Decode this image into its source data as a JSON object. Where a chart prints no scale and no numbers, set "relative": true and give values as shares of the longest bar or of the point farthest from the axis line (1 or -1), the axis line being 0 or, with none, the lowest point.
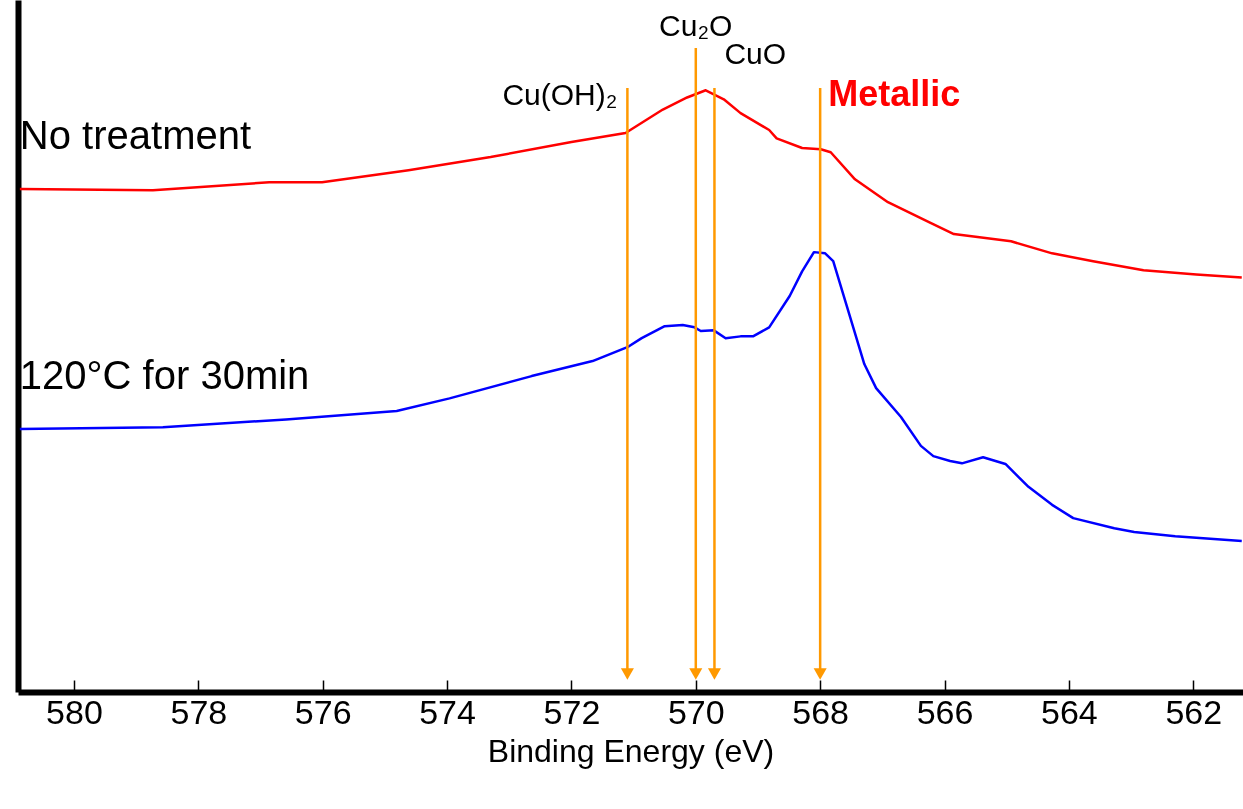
{
  "chart_data": {
    "type": "line",
    "xlabel": "Binding Energy (eV)",
    "xlim": [
      580.9,
      561.2
    ],
    "xticks": [
      580,
      578,
      576,
      574,
      572,
      570,
      568,
      566,
      564,
      562
    ],
    "relative": true,
    "grid": false,
    "line_style": "solid",
    "marker": "none",
    "series": [
      {
        "name": "No treatment",
        "color": "#ff0000",
        "x": [
          580.87,
          578.73,
          576.86,
          576.01,
          574.62,
          573.3,
          572.0,
          571.13,
          570.53,
          570.14,
          569.84,
          569.55,
          569.28,
          568.82,
          568.7,
          568.29,
          567.99,
          567.83,
          567.44,
          566.91,
          566.25,
          565.85,
          564.93,
          564.27,
          563.61,
          562.8,
          561.95,
          561.22
        ],
        "values": [
          0.836,
          0.834,
          0.847,
          0.847,
          0.867,
          0.889,
          0.914,
          0.929,
          0.968,
          0.988,
          1.0,
          0.985,
          0.962,
          0.934,
          0.92,
          0.904,
          0.902,
          0.897,
          0.852,
          0.814,
          0.781,
          0.761,
          0.749,
          0.729,
          0.716,
          0.701,
          0.694,
          0.689
        ]
      },
      {
        "name": "120°C for 30min",
        "color": "#0000ff",
        "x": [
          580.87,
          578.57,
          576.59,
          574.81,
          573.96,
          572.64,
          571.66,
          571.1,
          570.87,
          570.5,
          570.21,
          570.02,
          569.92,
          569.71,
          569.52,
          569.28,
          569.08,
          568.82,
          568.49,
          568.29,
          568.1,
          567.92,
          567.79,
          567.57,
          567.29,
          567.1,
          566.7,
          566.38,
          566.18,
          565.91,
          565.72,
          565.38,
          565.02,
          564.65,
          564.27,
          563.93,
          563.27,
          562.95,
          562.29,
          561.22
        ],
        "values": [
          0.437,
          0.44,
          0.453,
          0.467,
          0.488,
          0.525,
          0.55,
          0.573,
          0.588,
          0.608,
          0.61,
          0.606,
          0.6,
          0.601,
          0.588,
          0.591,
          0.591,
          0.606,
          0.658,
          0.699,
          0.731,
          0.729,
          0.716,
          0.641,
          0.545,
          0.505,
          0.457,
          0.409,
          0.392,
          0.384,
          0.38,
          0.39,
          0.379,
          0.341,
          0.311,
          0.289,
          0.272,
          0.266,
          0.259,
          0.251
        ]
      }
    ],
    "ref_lines": [
      {
        "axis": "x",
        "value": 571.1,
        "label": "Cu(OH)₂",
        "color": "#ff9900"
      },
      {
        "axis": "x",
        "value": 570.0,
        "label": "Cu₂O",
        "color": "#ff9900"
      },
      {
        "axis": "x",
        "value": 569.7,
        "label": "CuO",
        "color": "#ff9900"
      },
      {
        "axis": "x",
        "value": 568.0,
        "label": "Metallic",
        "color": "#ff9900"
      }
    ]
  }
}
